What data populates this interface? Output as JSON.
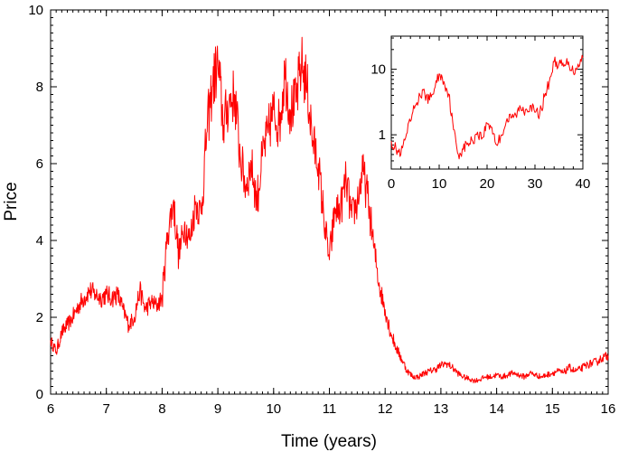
{
  "chart_data": [
    {
      "type": "line",
      "title": "",
      "xlabel": "Time (years)",
      "ylabel": "Price",
      "xlim": [
        6,
        16
      ],
      "ylim": [
        0,
        10
      ],
      "xticks": [
        "6",
        "7",
        "8",
        "9",
        "10",
        "11",
        "12",
        "13",
        "14",
        "15",
        "16"
      ],
      "yticks": [
        "0",
        "2",
        "4",
        "6",
        "8",
        "10"
      ],
      "grid": false,
      "legend": "none",
      "series": [
        {
          "color": "#ff0000",
          "x": [
            6.0,
            6.1,
            6.2,
            6.3,
            6.4,
            6.5,
            6.6,
            6.7,
            6.8,
            6.9,
            7.0,
            7.1,
            7.2,
            7.3,
            7.4,
            7.5,
            7.6,
            7.7,
            7.8,
            7.9,
            8.0,
            8.1,
            8.2,
            8.3,
            8.4,
            8.5,
            8.6,
            8.7,
            8.8,
            8.9,
            9.0,
            9.1,
            9.2,
            9.3,
            9.4,
            9.5,
            9.6,
            9.7,
            9.8,
            9.9,
            10.0,
            10.1,
            10.2,
            10.3,
            10.4,
            10.5,
            10.6,
            10.7,
            10.8,
            10.9,
            11.0,
            11.1,
            11.2,
            11.3,
            11.4,
            11.5,
            11.6,
            11.7,
            11.8,
            11.9,
            12.0,
            12.1,
            12.2,
            12.3,
            12.4,
            12.5,
            12.6,
            12.7,
            12.8,
            12.9,
            13.0,
            13.1,
            13.2,
            13.3,
            13.4,
            13.5,
            13.6,
            13.7,
            13.8,
            13.9,
            14.0,
            14.1,
            14.2,
            14.3,
            14.4,
            14.5,
            14.6,
            14.7,
            14.8,
            14.9,
            15.0,
            15.1,
            15.2,
            15.3,
            15.4,
            15.5,
            15.6,
            15.7,
            15.8,
            15.9,
            16.0
          ],
          "y": [
            1.4,
            1.1,
            1.6,
            1.8,
            2.0,
            2.3,
            2.5,
            2.7,
            2.6,
            2.5,
            2.6,
            2.5,
            2.6,
            2.2,
            1.8,
            2.0,
            2.7,
            2.2,
            2.4,
            2.3,
            2.5,
            4.2,
            5.0,
            3.6,
            4.4,
            4.0,
            5.0,
            4.7,
            6.8,
            8.0,
            8.6,
            7.0,
            7.6,
            7.8,
            6.2,
            5.4,
            6.0,
            5.0,
            6.2,
            6.8,
            7.4,
            7.0,
            8.4,
            7.4,
            7.6,
            8.6,
            8.0,
            6.6,
            6.0,
            4.6,
            3.5,
            4.8,
            4.8,
            5.6,
            4.6,
            5.0,
            5.8,
            5.0,
            3.8,
            2.8,
            2.2,
            1.6,
            1.2,
            0.9,
            0.6,
            0.45,
            0.45,
            0.55,
            0.6,
            0.65,
            0.75,
            0.8,
            0.7,
            0.55,
            0.45,
            0.4,
            0.35,
            0.38,
            0.45,
            0.45,
            0.5,
            0.45,
            0.5,
            0.55,
            0.5,
            0.45,
            0.55,
            0.5,
            0.45,
            0.5,
            0.55,
            0.6,
            0.55,
            0.7,
            0.6,
            0.65,
            0.75,
            0.8,
            0.85,
            0.95,
            1.0
          ]
        }
      ]
    },
    {
      "type": "line",
      "title": "",
      "xlabel": "",
      "ylabel": "",
      "xlim": [
        0,
        40
      ],
      "ylim": [
        0.3,
        32
      ],
      "yscale": "log",
      "xticks": [
        "0",
        "10",
        "20",
        "30",
        "40"
      ],
      "yticks": [
        "1",
        "10"
      ],
      "grid": false,
      "legend": "none",
      "series": [
        {
          "color": "#ff0000",
          "x": [
            0,
            1,
            2,
            3,
            4,
            5,
            6,
            7,
            8,
            9,
            10,
            11,
            12,
            13,
            14,
            15,
            16,
            17,
            18,
            19,
            20,
            21,
            22,
            23,
            24,
            25,
            26,
            27,
            28,
            29,
            30,
            31,
            32,
            33,
            34,
            35,
            36,
            37,
            38,
            39,
            40
          ],
          "y": [
            0.8,
            0.6,
            0.5,
            0.9,
            1.6,
            2.8,
            4.0,
            4.2,
            3.4,
            5.0,
            8.5,
            6.5,
            4.2,
            1.2,
            0.5,
            0.6,
            0.75,
            0.8,
            1.1,
            0.9,
            1.5,
            1.3,
            0.7,
            1.0,
            1.6,
            1.8,
            2.0,
            2.6,
            2.4,
            2.8,
            2.2,
            2.1,
            3.8,
            6.5,
            13.0,
            12.0,
            11.0,
            13.0,
            9.0,
            12.0,
            15.0
          ]
        }
      ]
    }
  ]
}
